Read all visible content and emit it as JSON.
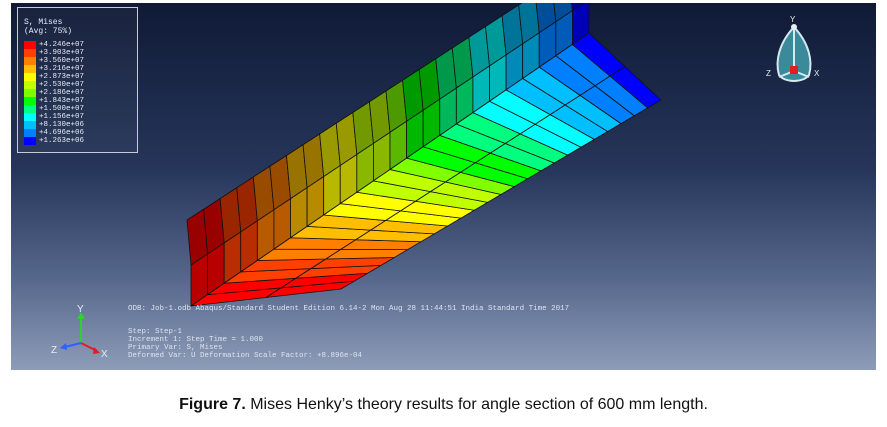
{
  "legend": {
    "title_line1": "S, Mises",
    "title_line2": "(Avg: 75%)",
    "entries": [
      {
        "value": "+4.246e+07",
        "color": "#ff0000"
      },
      {
        "value": "+3.903e+07",
        "color": "#ff4000"
      },
      {
        "value": "+3.560e+07",
        "color": "#ff7f00"
      },
      {
        "value": "+3.216e+07",
        "color": "#ffbf00"
      },
      {
        "value": "+2.873e+07",
        "color": "#ffff00"
      },
      {
        "value": "+2.530e+07",
        "color": "#bfff00"
      },
      {
        "value": "+2.186e+07",
        "color": "#7fff00"
      },
      {
        "value": "+1.843e+07",
        "color": "#00ff00"
      },
      {
        "value": "+1.500e+07",
        "color": "#00ff7f"
      },
      {
        "value": "+1.156e+07",
        "color": "#00ffff"
      },
      {
        "value": "+8.130e+06",
        "color": "#00bfff"
      },
      {
        "value": "+4.696e+06",
        "color": "#0080ff"
      },
      {
        "value": "+1.263e+06",
        "color": "#0000ff"
      }
    ]
  },
  "info": {
    "odb_line": "ODB: Job-1.odb    Abaqus/Standard Student Edition 6.14-2    Mon Aug 28 11:44:51 India Standard Time 2017",
    "step_line": "Step: Step-1",
    "increment_line": "Increment     1: Step Time =     1.000",
    "primary_var_line": "Primary Var: S, Mises",
    "deformed_var_line": "Deformed Var: U   Deformation Scale Factor: +8.896e-04"
  },
  "triad": {
    "x_label": "X",
    "y_label": "Y",
    "z_label": "Z"
  },
  "view_cube": {
    "x_label": "X",
    "y_label": "Y",
    "z_label": "Z"
  },
  "caption": {
    "label": "Figure 7.",
    "text": " Mises Henky’s theory results for angle section of 600 mm length."
  },
  "colors": {
    "background_top": "#0f1a36",
    "background_bottom": "#8d9cb8",
    "mesh_line": "#111111"
  }
}
